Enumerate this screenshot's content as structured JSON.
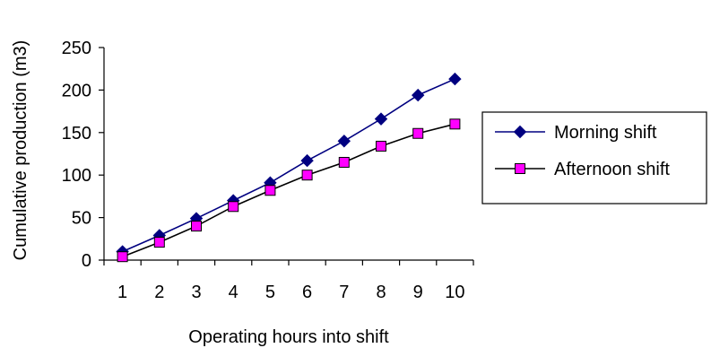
{
  "chart_data": {
    "type": "line",
    "title": "",
    "xlabel": "Operating hours into shift",
    "ylabel": "Cumulative production (m3)",
    "x": [
      1,
      2,
      3,
      4,
      5,
      6,
      7,
      8,
      9,
      10
    ],
    "x_tick_labels": [
      "1",
      "2",
      "3",
      "4",
      "5",
      "6",
      "7",
      "8",
      "9",
      "10"
    ],
    "ylim": [
      0,
      250
    ],
    "y_ticks": [
      0,
      50,
      100,
      150,
      200,
      250
    ],
    "y_tick_labels": [
      "0",
      "50",
      "100",
      "150",
      "200",
      "250"
    ],
    "grid": false,
    "legend_position": "right",
    "series": [
      {
        "name": "Morning shift",
        "marker": "diamond",
        "color": "#000080",
        "marker_color": "#000080",
        "values": [
          10,
          29,
          49,
          70,
          91,
          117,
          140,
          166,
          194,
          213
        ]
      },
      {
        "name": "Afternoon shift",
        "marker": "square",
        "color": "#000000",
        "marker_color": "#ff00ff",
        "values": [
          4,
          21,
          40,
          63,
          82,
          100,
          115,
          134,
          149,
          160
        ]
      }
    ]
  }
}
